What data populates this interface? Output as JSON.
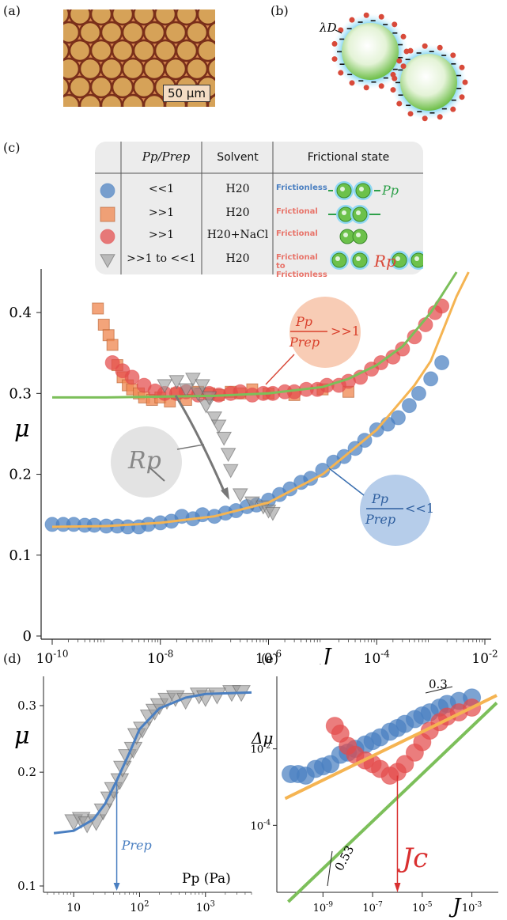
{
  "panel_labels": {
    "a": "(a)",
    "b": "(b)",
    "c": "(c)",
    "d": "(d)",
    "e": "(e)"
  },
  "panel_a": {
    "scale_bar_label": "50 µm"
  },
  "panel_b": {
    "debye_label": "λD"
  },
  "legend": {
    "headers": [
      "Pp/Prep",
      "Solvent",
      "Frictional state"
    ],
    "rows": [
      {
        "marker": "circle",
        "color": "#4a7fc1",
        "ratio": "<<1",
        "solvent": "H20",
        "state": "Frictionless",
        "state_color": "#4a7fc1",
        "diagram_label": "Pp"
      },
      {
        "marker": "square",
        "color": "#f08b55",
        "ratio": ">>1",
        "solvent": "H20",
        "state": "Frictional",
        "state_color": "#e8746a",
        "diagram_label": ""
      },
      {
        "marker": "circle",
        "color": "#e34b4b",
        "ratio": ">>1",
        "solvent": "H20+NaCl",
        "state": "Frictional",
        "state_color": "#e8746a",
        "diagram_label": ""
      },
      {
        "marker": "triangle",
        "color": "#999999",
        "ratio": ">>1 to <<1",
        "solvent": "H20",
        "state": "Frictional to Frictionless",
        "state_color": "#e8746a",
        "state_color2": "#4a7fc1",
        "diagram_label": "Rp"
      }
    ]
  },
  "chart_data": [
    {
      "panel": "c",
      "type": "scatter",
      "xlabel": "J",
      "ylabel": "μ",
      "xscale": "log",
      "xlim": [
        1e-10,
        0.01
      ],
      "ylim": [
        0,
        0.45
      ],
      "xticks": [
        "10-10",
        "10-8",
        "10-6",
        "10-4",
        "10-2"
      ],
      "yticks": [
        "0",
        "0.1",
        "0.2",
        "0.3",
        "0.4"
      ],
      "annotations": [
        "Pp/Prep >>1",
        "Pp/Prep <<1",
        "Rp"
      ],
      "series": [
        {
          "marker": "circle",
          "color": "#4a7fc1",
          "points": [
            [
              1e-10,
              0.138
            ],
            [
              1.6e-10,
              0.138
            ],
            [
              2.5e-10,
              0.138
            ],
            [
              4e-10,
              0.137
            ],
            [
              6e-10,
              0.137
            ],
            [
              1e-09,
              0.136
            ],
            [
              1.6e-09,
              0.136
            ],
            [
              2.5e-09,
              0.135
            ],
            [
              4e-09,
              0.135
            ],
            [
              6e-09,
              0.138
            ],
            [
              1e-08,
              0.14
            ],
            [
              1.6e-08,
              0.142
            ],
            [
              2.5e-08,
              0.148
            ],
            [
              4e-08,
              0.145
            ],
            [
              6e-08,
              0.15
            ],
            [
              1e-07,
              0.148
            ],
            [
              1.6e-07,
              0.152
            ],
            [
              2.5e-07,
              0.155
            ],
            [
              4e-07,
              0.16
            ],
            [
              6e-07,
              0.162
            ],
            [
              1e-06,
              0.168
            ],
            [
              1.6e-06,
              0.175
            ],
            [
              2.5e-06,
              0.182
            ],
            [
              4e-06,
              0.19
            ],
            [
              6e-06,
              0.195
            ],
            [
              1e-05,
              0.205
            ],
            [
              1.6e-05,
              0.215
            ],
            [
              2.5e-05,
              0.222
            ],
            [
              4e-05,
              0.232
            ],
            [
              6e-05,
              0.242
            ],
            [
              0.0001,
              0.255
            ],
            [
              0.00016,
              0.262
            ],
            [
              0.00025,
              0.27
            ],
            [
              0.0004,
              0.285
            ],
            [
              0.0006,
              0.3
            ],
            [
              0.001,
              0.318
            ],
            [
              0.0016,
              0.338
            ]
          ]
        },
        {
          "marker": "square",
          "color": "#f08b55",
          "points": [
            [
              7e-10,
              0.405
            ],
            [
              9e-10,
              0.385
            ],
            [
              1.1e-09,
              0.372
            ],
            [
              1.3e-09,
              0.36
            ],
            [
              1.6e-09,
              0.335
            ],
            [
              2e-09,
              0.32
            ],
            [
              2.5e-09,
              0.31
            ],
            [
              3e-09,
              0.305
            ],
            [
              4e-09,
              0.3
            ],
            [
              5e-09,
              0.295
            ],
            [
              7e-09,
              0.292
            ],
            [
              1e-08,
              0.295
            ],
            [
              1.5e-08,
              0.29
            ],
            [
              2e-08,
              0.3
            ],
            [
              3e-08,
              0.292
            ],
            [
              5e-08,
              0.302
            ],
            [
              8e-08,
              0.3
            ],
            [
              1.2e-07,
              0.298
            ],
            [
              2e-07,
              0.302
            ],
            [
              3e-07,
              0.3
            ],
            [
              5e-07,
              0.305
            ],
            [
              1e-06,
              0.3
            ],
            [
              3e-06,
              0.298
            ],
            [
              1e-05,
              0.305
            ],
            [
              3e-05,
              0.302
            ]
          ]
        },
        {
          "marker": "circle",
          "color": "#e34b4b",
          "points": [
            [
              1.3e-09,
              0.338
            ],
            [
              2e-09,
              0.328
            ],
            [
              3e-09,
              0.32
            ],
            [
              5e-09,
              0.31
            ],
            [
              8e-09,
              0.303
            ],
            [
              1.2e-08,
              0.3
            ],
            [
              2e-08,
              0.3
            ],
            [
              3e-08,
              0.302
            ],
            [
              5e-08,
              0.298
            ],
            [
              8e-08,
              0.3
            ],
            [
              1.2e-07,
              0.298
            ],
            [
              2e-07,
              0.3
            ],
            [
              3e-07,
              0.302
            ],
            [
              5e-07,
              0.298
            ],
            [
              8e-07,
              0.3
            ],
            [
              1.2e-06,
              0.3
            ],
            [
              2e-06,
              0.302
            ],
            [
              3e-06,
              0.302
            ],
            [
              5e-06,
              0.305
            ],
            [
              8e-06,
              0.305
            ],
            [
              1.2e-05,
              0.31
            ],
            [
              2e-05,
              0.31
            ],
            [
              3e-05,
              0.315
            ],
            [
              5e-05,
              0.32
            ],
            [
              8e-05,
              0.33
            ],
            [
              0.00012,
              0.338
            ],
            [
              0.0002,
              0.345
            ],
            [
              0.0003,
              0.355
            ],
            [
              0.0005,
              0.37
            ],
            [
              0.0008,
              0.385
            ],
            [
              0.0012,
              0.4
            ],
            [
              0.0016,
              0.408
            ]
          ]
        },
        {
          "marker": "triangle",
          "color": "#999999",
          "points": [
            [
              1.2e-08,
              0.31
            ],
            [
              2e-08,
              0.315
            ],
            [
              3e-08,
              0.305
            ],
            [
              4e-08,
              0.318
            ],
            [
              5e-08,
              0.3
            ],
            [
              6e-08,
              0.31
            ],
            [
              7e-08,
              0.285
            ],
            [
              8e-08,
              0.295
            ],
            [
              1e-07,
              0.27
            ],
            [
              1.2e-07,
              0.26
            ],
            [
              1.5e-07,
              0.245
            ],
            [
              1.8e-07,
              0.225
            ],
            [
              2e-07,
              0.205
            ],
            [
              3e-07,
              0.175
            ],
            [
              5e-07,
              0.165
            ],
            [
              8e-07,
              0.16
            ],
            [
              1e-06,
              0.155
            ],
            [
              1.2e-06,
              0.152
            ]
          ]
        }
      ],
      "fits": [
        {
          "color": "#7cbf5a",
          "points": [
            [
              1e-10,
              0.295
            ],
            [
              1e-09,
              0.295
            ],
            [
              1e-08,
              0.296
            ],
            [
              1e-07,
              0.297
            ],
            [
              1e-06,
              0.3
            ],
            [
              1e-05,
              0.308
            ],
            [
              3e-05,
              0.318
            ],
            [
              0.0001,
              0.335
            ],
            [
              0.0003,
              0.358
            ],
            [
              0.001,
              0.4
            ],
            [
              0.003,
              0.45
            ]
          ]
        },
        {
          "color": "#f5b452",
          "points": [
            [
              1e-10,
              0.135
            ],
            [
              1e-09,
              0.136
            ],
            [
              1e-08,
              0.14
            ],
            [
              1e-07,
              0.148
            ],
            [
              1e-06,
              0.165
            ],
            [
              1e-05,
              0.2
            ],
            [
              0.0001,
              0.255
            ],
            [
              0.0005,
              0.31
            ],
            [
              0.001,
              0.34
            ],
            [
              0.003,
              0.42
            ],
            [
              0.005,
              0.45
            ]
          ]
        }
      ]
    },
    {
      "panel": "d",
      "type": "scatter",
      "xlabel": "Pp (Pa)",
      "ylabel": "μ",
      "xscale": "log",
      "yscale": "log",
      "xlim": [
        4,
        5000
      ],
      "ylim": [
        0.1,
        0.35
      ],
      "xticks": [
        "10",
        "10²",
        "10³"
      ],
      "yticks": [
        "0.1",
        "0.2",
        "0.3"
      ],
      "annotation": "Prep",
      "annotation_x": 45,
      "series": [
        {
          "marker": "triangle",
          "color": "#999999",
          "points": [
            [
              10,
              0.148
            ],
            [
              13,
              0.15
            ],
            [
              16,
              0.146
            ],
            [
              22,
              0.148
            ],
            [
              28,
              0.158
            ],
            [
              35,
              0.17
            ],
            [
              40,
              0.18
            ],
            [
              50,
              0.19
            ],
            [
              55,
              0.205
            ],
            [
              65,
              0.22
            ],
            [
              80,
              0.23
            ],
            [
              90,
              0.25
            ],
            [
              110,
              0.26
            ],
            [
              140,
              0.28
            ],
            [
              170,
              0.29
            ],
            [
              200,
              0.3
            ],
            [
              260,
              0.31
            ],
            [
              350,
              0.315
            ],
            [
              500,
              0.31
            ],
            [
              800,
              0.32
            ],
            [
              1000,
              0.315
            ],
            [
              1500,
              0.32
            ],
            [
              2500,
              0.325
            ],
            [
              3500,
              0.325
            ]
          ]
        }
      ],
      "fits": [
        {
          "color": "#4a7fc1",
          "points": [
            [
              5,
              0.138
            ],
            [
              10,
              0.14
            ],
            [
              20,
              0.15
            ],
            [
              30,
              0.165
            ],
            [
              45,
              0.19
            ],
            [
              70,
              0.225
            ],
            [
              100,
              0.26
            ],
            [
              200,
              0.295
            ],
            [
              500,
              0.315
            ],
            [
              1000,
              0.322
            ],
            [
              5000,
              0.325
            ]
          ]
        }
      ]
    },
    {
      "panel": "e",
      "type": "scatter",
      "xlabel": "J",
      "ylabel": "Δμ",
      "xscale": "log",
      "yscale": "log",
      "xlim": [
        2e-11,
        0.01
      ],
      "ylim": [
        1e-06,
        1
      ],
      "xticks": [
        "10-9",
        "10-7",
        "10-5",
        "10-3"
      ],
      "yticks": [
        "10-2",
        "10-4"
      ],
      "slope_labels": [
        "0.3",
        "0.53"
      ],
      "annotation": "Jc",
      "annotation_x": 1e-06,
      "series": [
        {
          "marker": "circle",
          "color": "#4a7fc1",
          "points": [
            [
              5e-11,
              0.0022
            ],
            [
              1e-10,
              0.0022
            ],
            [
              2e-10,
              0.002
            ],
            [
              5e-10,
              0.003
            ],
            [
              1e-09,
              0.0035
            ],
            [
              2e-09,
              0.004
            ],
            [
              5e-09,
              0.007
            ],
            [
              1e-08,
              0.008
            ],
            [
              2e-08,
              0.01
            ],
            [
              5e-08,
              0.013
            ],
            [
              1e-07,
              0.016
            ],
            [
              2e-07,
              0.02
            ],
            [
              5e-07,
              0.028
            ],
            [
              1e-06,
              0.035
            ],
            [
              2e-06,
              0.045
            ],
            [
              5e-06,
              0.06
            ],
            [
              1e-05,
              0.075
            ],
            [
              2e-05,
              0.09
            ],
            [
              5e-05,
              0.12
            ],
            [
              0.0001,
              0.15
            ],
            [
              0.0003,
              0.18
            ],
            [
              0.001,
              0.22
            ]
          ]
        },
        {
          "marker": "circle",
          "color": "#e34b4b",
          "points": [
            [
              3e-09,
              0.04
            ],
            [
              5e-09,
              0.025
            ],
            [
              1e-08,
              0.012
            ],
            [
              2e-08,
              0.007
            ],
            [
              5e-08,
              0.005
            ],
            [
              1e-07,
              0.004
            ],
            [
              2e-07,
              0.003
            ],
            [
              5e-07,
              0.002
            ],
            [
              1e-06,
              0.0025
            ],
            [
              2e-06,
              0.004
            ],
            [
              5e-06,
              0.008
            ],
            [
              1e-05,
              0.015
            ],
            [
              2e-05,
              0.03
            ],
            [
              5e-05,
              0.05
            ],
            [
              0.0001,
              0.07
            ],
            [
              0.0003,
              0.09
            ],
            [
              0.001,
              0.12
            ]
          ]
        }
      ],
      "fits": [
        {
          "color": "#f5b452",
          "points": [
            [
              3e-11,
              0.0005
            ],
            [
              0.01,
              0.25
            ]
          ]
        },
        {
          "color": "#7cbf5a",
          "points": [
            [
              4e-11,
              1e-06
            ],
            [
              0.01,
              0.16
            ]
          ]
        }
      ]
    }
  ]
}
